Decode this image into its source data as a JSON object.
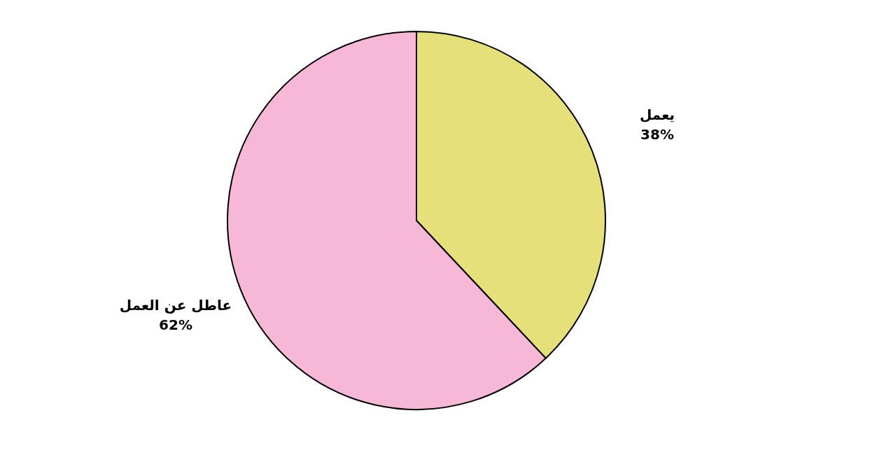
{
  "chart_data": {
    "type": "pie",
    "categories": [
      "يعمل",
      "عاطل عن العمل"
    ],
    "values": [
      38,
      62
    ],
    "colors": [
      "#e6e07a",
      "#f7b8d8"
    ],
    "value_labels": [
      "38%",
      "62%"
    ],
    "legend": false
  }
}
